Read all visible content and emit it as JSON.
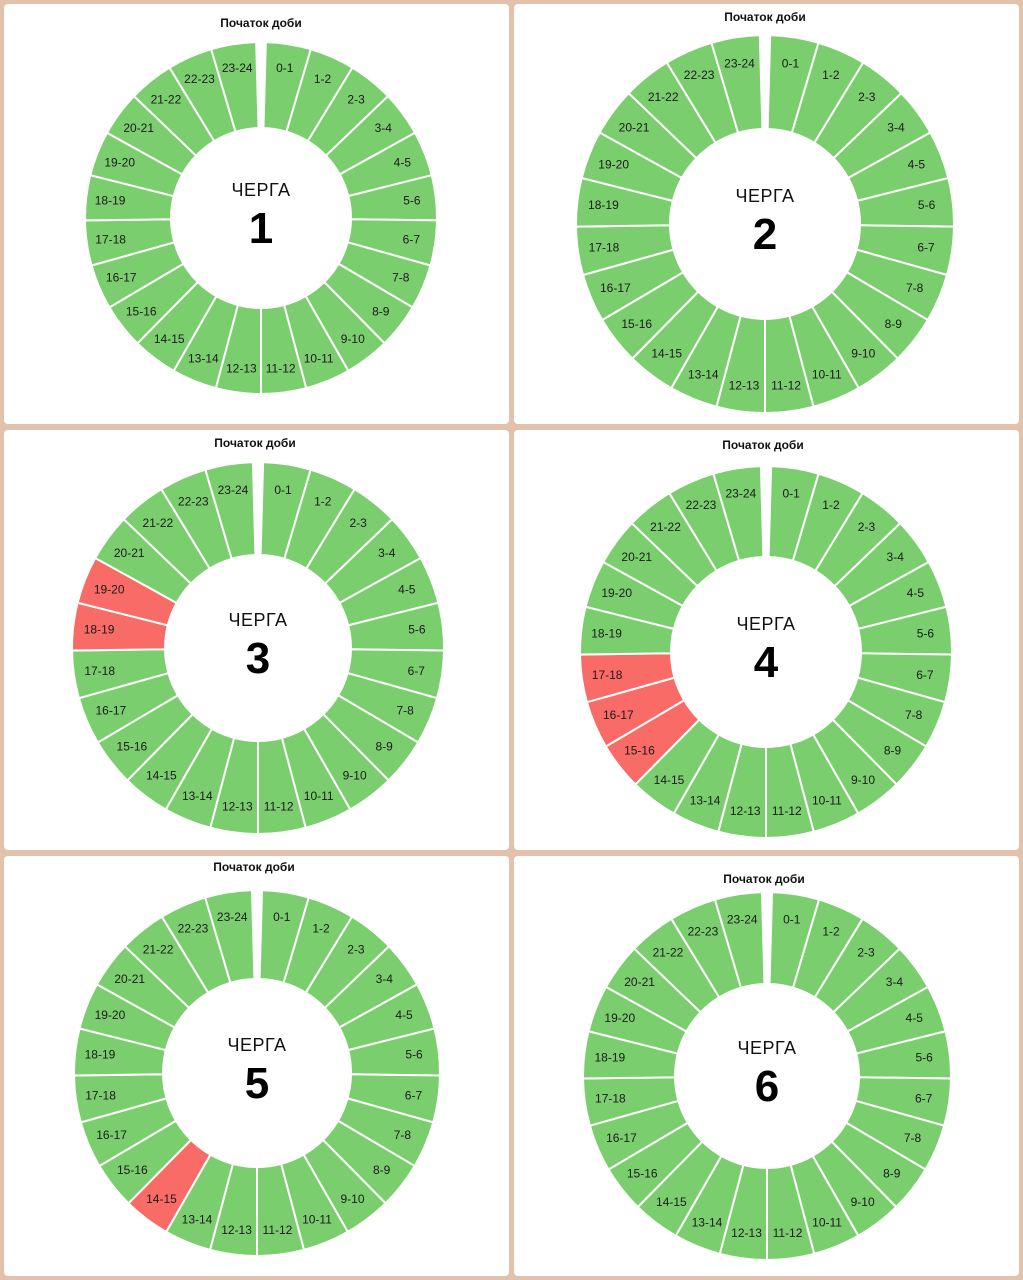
{
  "start_label": "Початок доби",
  "queue_word": "ЧЕРГА",
  "colors": {
    "on": "#7bce6e",
    "off": "#f96b67",
    "divider": "#ffffff",
    "frame": "#e2c1ad"
  },
  "slots": [
    "0-1",
    "1-2",
    "2-3",
    "3-4",
    "4-5",
    "5-6",
    "6-7",
    "7-8",
    "8-9",
    "9-10",
    "10-11",
    "11-12",
    "12-13",
    "13-14",
    "14-15",
    "15-16",
    "16-17",
    "17-18",
    "18-19",
    "19-20",
    "20-21",
    "21-22",
    "22-23",
    "23-24"
  ],
  "queues": [
    {
      "number": "1",
      "off_slots": []
    },
    {
      "number": "2",
      "off_slots": []
    },
    {
      "number": "3",
      "off_slots": [
        "18-19",
        "19-20"
      ]
    },
    {
      "number": "4",
      "off_slots": [
        "15-16",
        "16-17",
        "17-18"
      ]
    },
    {
      "number": "5",
      "off_slots": [
        "14-15"
      ]
    },
    {
      "number": "6",
      "off_slots": []
    }
  ]
}
